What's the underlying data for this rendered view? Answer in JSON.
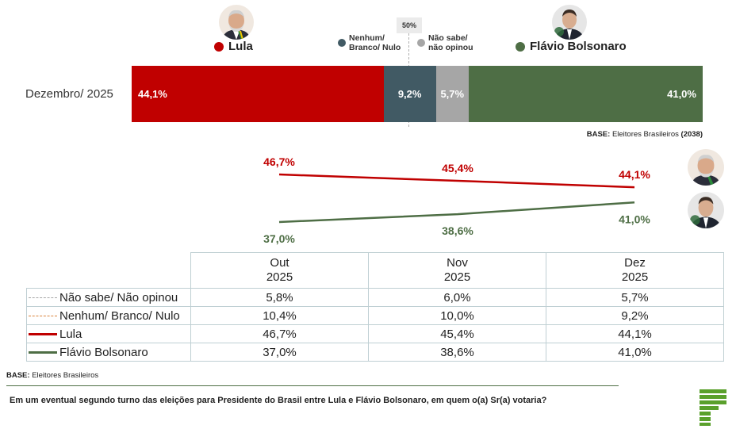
{
  "header": {
    "threshold_label": "50%",
    "legend": [
      {
        "key": "lula",
        "label": "Lula",
        "color": "#c00000"
      },
      {
        "key": "nulo",
        "label_line1": "Nenhum/",
        "label_line2": "Branco/ Nulo",
        "color": "#415a64"
      },
      {
        "key": "nsabe",
        "label_line1": "Não sabe/",
        "label_line2": "não opinou",
        "color": "#a6a6a6"
      },
      {
        "key": "flavio",
        "label": "Flávio Bolsonaro",
        "color": "#4e6e45"
      }
    ]
  },
  "bar": {
    "row_label": "Dezembro/ 2025",
    "segments": [
      {
        "name": "Lula",
        "value": 44.1,
        "label": "44,1%",
        "color": "#c00000"
      },
      {
        "name": "Nenhum/ Branco/ Nulo",
        "value": 9.2,
        "label": "9,2%",
        "color": "#415a64"
      },
      {
        "name": "Não sabe/ não opinou",
        "value": 5.7,
        "label": "5,7%",
        "color": "#a6a6a6"
      },
      {
        "name": "Flávio Bolsonaro",
        "value": 41.0,
        "label": "41,0%",
        "color": "#4e6e45"
      }
    ],
    "base_prefix": "BASE:",
    "base_text": "Eleitores Brasileiros",
    "base_count": "(2038)"
  },
  "chart_data": {
    "type": "line",
    "title": "Em um eventual segundo turno das eleições para Presidente do Brasil entre Lula e Flávio Bolsonaro, em quem o(a) Sr(a) votaria?",
    "categories": [
      "Out 2025",
      "Nov 2025",
      "Dez 2025"
    ],
    "series": [
      {
        "name": "Lula",
        "values": [
          46.7,
          45.4,
          44.1
        ],
        "labels": [
          "46,7%",
          "45,4%",
          "44,1%"
        ],
        "color": "#c00000"
      },
      {
        "name": "Flávio Bolsonaro",
        "values": [
          37.0,
          38.6,
          41.0
        ],
        "labels": [
          "37,0%",
          "38,6%",
          "41,0%"
        ],
        "color": "#4e6e45"
      }
    ]
  },
  "table": {
    "headers": [
      {
        "month": "Out",
        "year": "2025"
      },
      {
        "month": "Nov",
        "year": "2025"
      },
      {
        "month": "Dez",
        "year": "2025"
      }
    ],
    "rows": [
      {
        "label": "Não sabe/ Não opinou",
        "line_color": "#a6a6a6",
        "line_style": "dashed",
        "values": [
          "5,8%",
          "6,0%",
          "5,7%"
        ]
      },
      {
        "label": "Nenhum/ Branco/ Nulo",
        "line_color": "#d9823b",
        "line_style": "dashed",
        "values": [
          "10,4%",
          "10,0%",
          "9,2%"
        ]
      },
      {
        "label": "Lula",
        "line_color": "#c00000",
        "line_style": "solid",
        "values": [
          "46,7%",
          "45,4%",
          "44,1%"
        ]
      },
      {
        "label": "Flávio Bolsonaro",
        "line_color": "#4e6e45",
        "line_style": "solid",
        "values": [
          "37,0%",
          "38,6%",
          "41,0%"
        ]
      }
    ]
  },
  "footer": {
    "base_prefix": "BASE:",
    "base_text": "Eleitores Brasileiros",
    "question": "Em um eventual segundo turno das eleições para Presidente do Brasil entre Lula e Flávio Bolsonaro, em quem o(a) Sr(a) votaria?",
    "logo_color": "#5aa02c"
  }
}
